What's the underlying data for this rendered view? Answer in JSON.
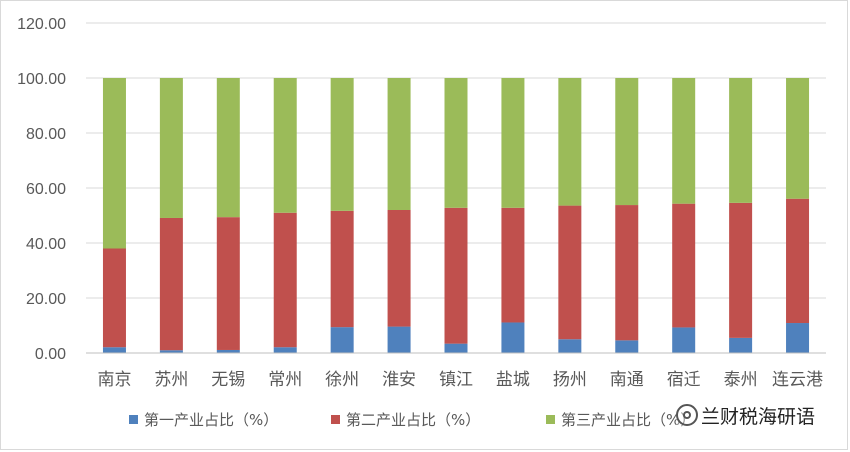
{
  "chart_data": {
    "type": "stacked-bar",
    "title": "",
    "xlabel": "",
    "ylabel": "",
    "ylim": [
      0,
      120
    ],
    "yticks": [
      "0.00",
      "20.00",
      "40.00",
      "60.00",
      "80.00",
      "100.00",
      "120.00"
    ],
    "grid": true,
    "legend_position": "bottom",
    "categories": [
      "南京",
      "苏州",
      "无锡",
      "常州",
      "徐州",
      "淮安",
      "镇江",
      "盐城",
      "扬州",
      "南通",
      "宿迁",
      "泰州",
      "连云港"
    ],
    "series": [
      {
        "name": "第一产业占比（%）",
        "color": "#4f81bd",
        "values": [
          2.1,
          1.0,
          1.1,
          2.1,
          9.4,
          9.6,
          3.4,
          11.1,
          5.0,
          4.6,
          9.3,
          5.5,
          10.9
        ]
      },
      {
        "name": "第二产业占比（%）",
        "color": "#c0504d",
        "values": [
          35.9,
          48.1,
          48.3,
          48.9,
          42.3,
          42.4,
          49.4,
          41.7,
          48.6,
          49.2,
          45.0,
          49.1,
          45.2
        ]
      },
      {
        "name": "第三产业占比（%）",
        "color": "#9bbb59",
        "values": [
          62.0,
          50.9,
          50.6,
          49.0,
          48.3,
          48.0,
          47.2,
          47.2,
          46.4,
          46.2,
          45.7,
          45.4,
          43.9
        ]
      }
    ]
  },
  "legend": {
    "items": [
      "第一产业占比（%）",
      "第二产业占比（%）",
      "第三产业占比（%）"
    ]
  },
  "watermark": {
    "icon": "wechat-search-icon",
    "text": "兰财税海研语"
  }
}
